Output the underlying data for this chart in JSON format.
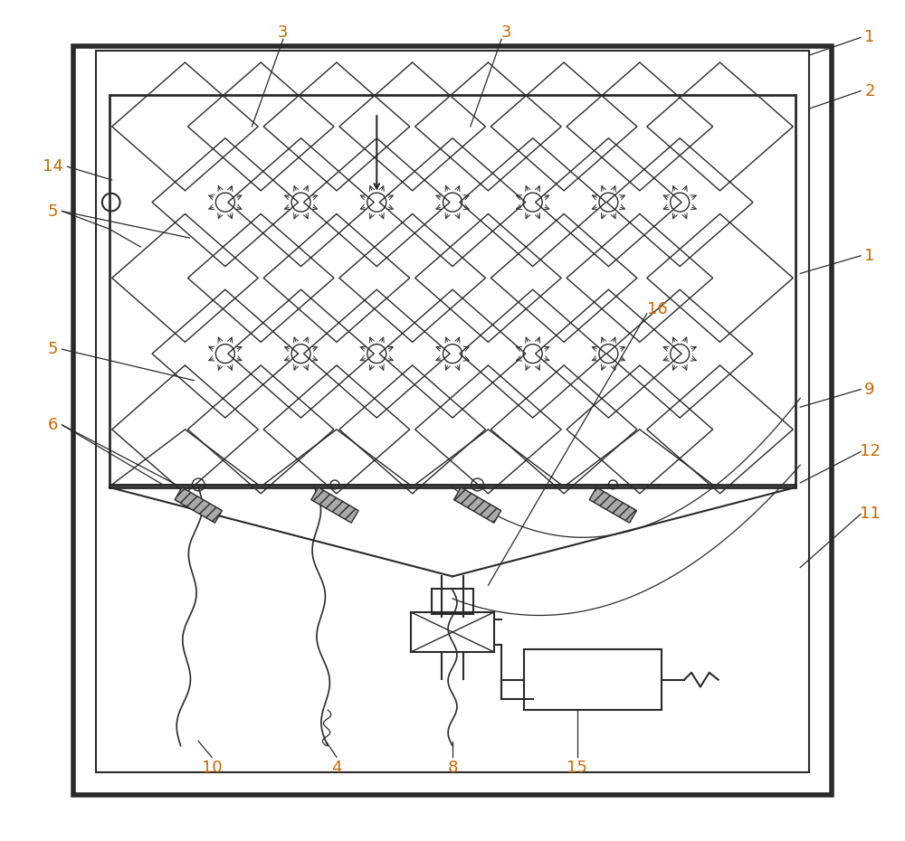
{
  "bg_color": "#ffffff",
  "line_color": "#2a2a2a",
  "label_orange": "#cc6600",
  "fig_width": 10.0,
  "fig_height": 9.3
}
